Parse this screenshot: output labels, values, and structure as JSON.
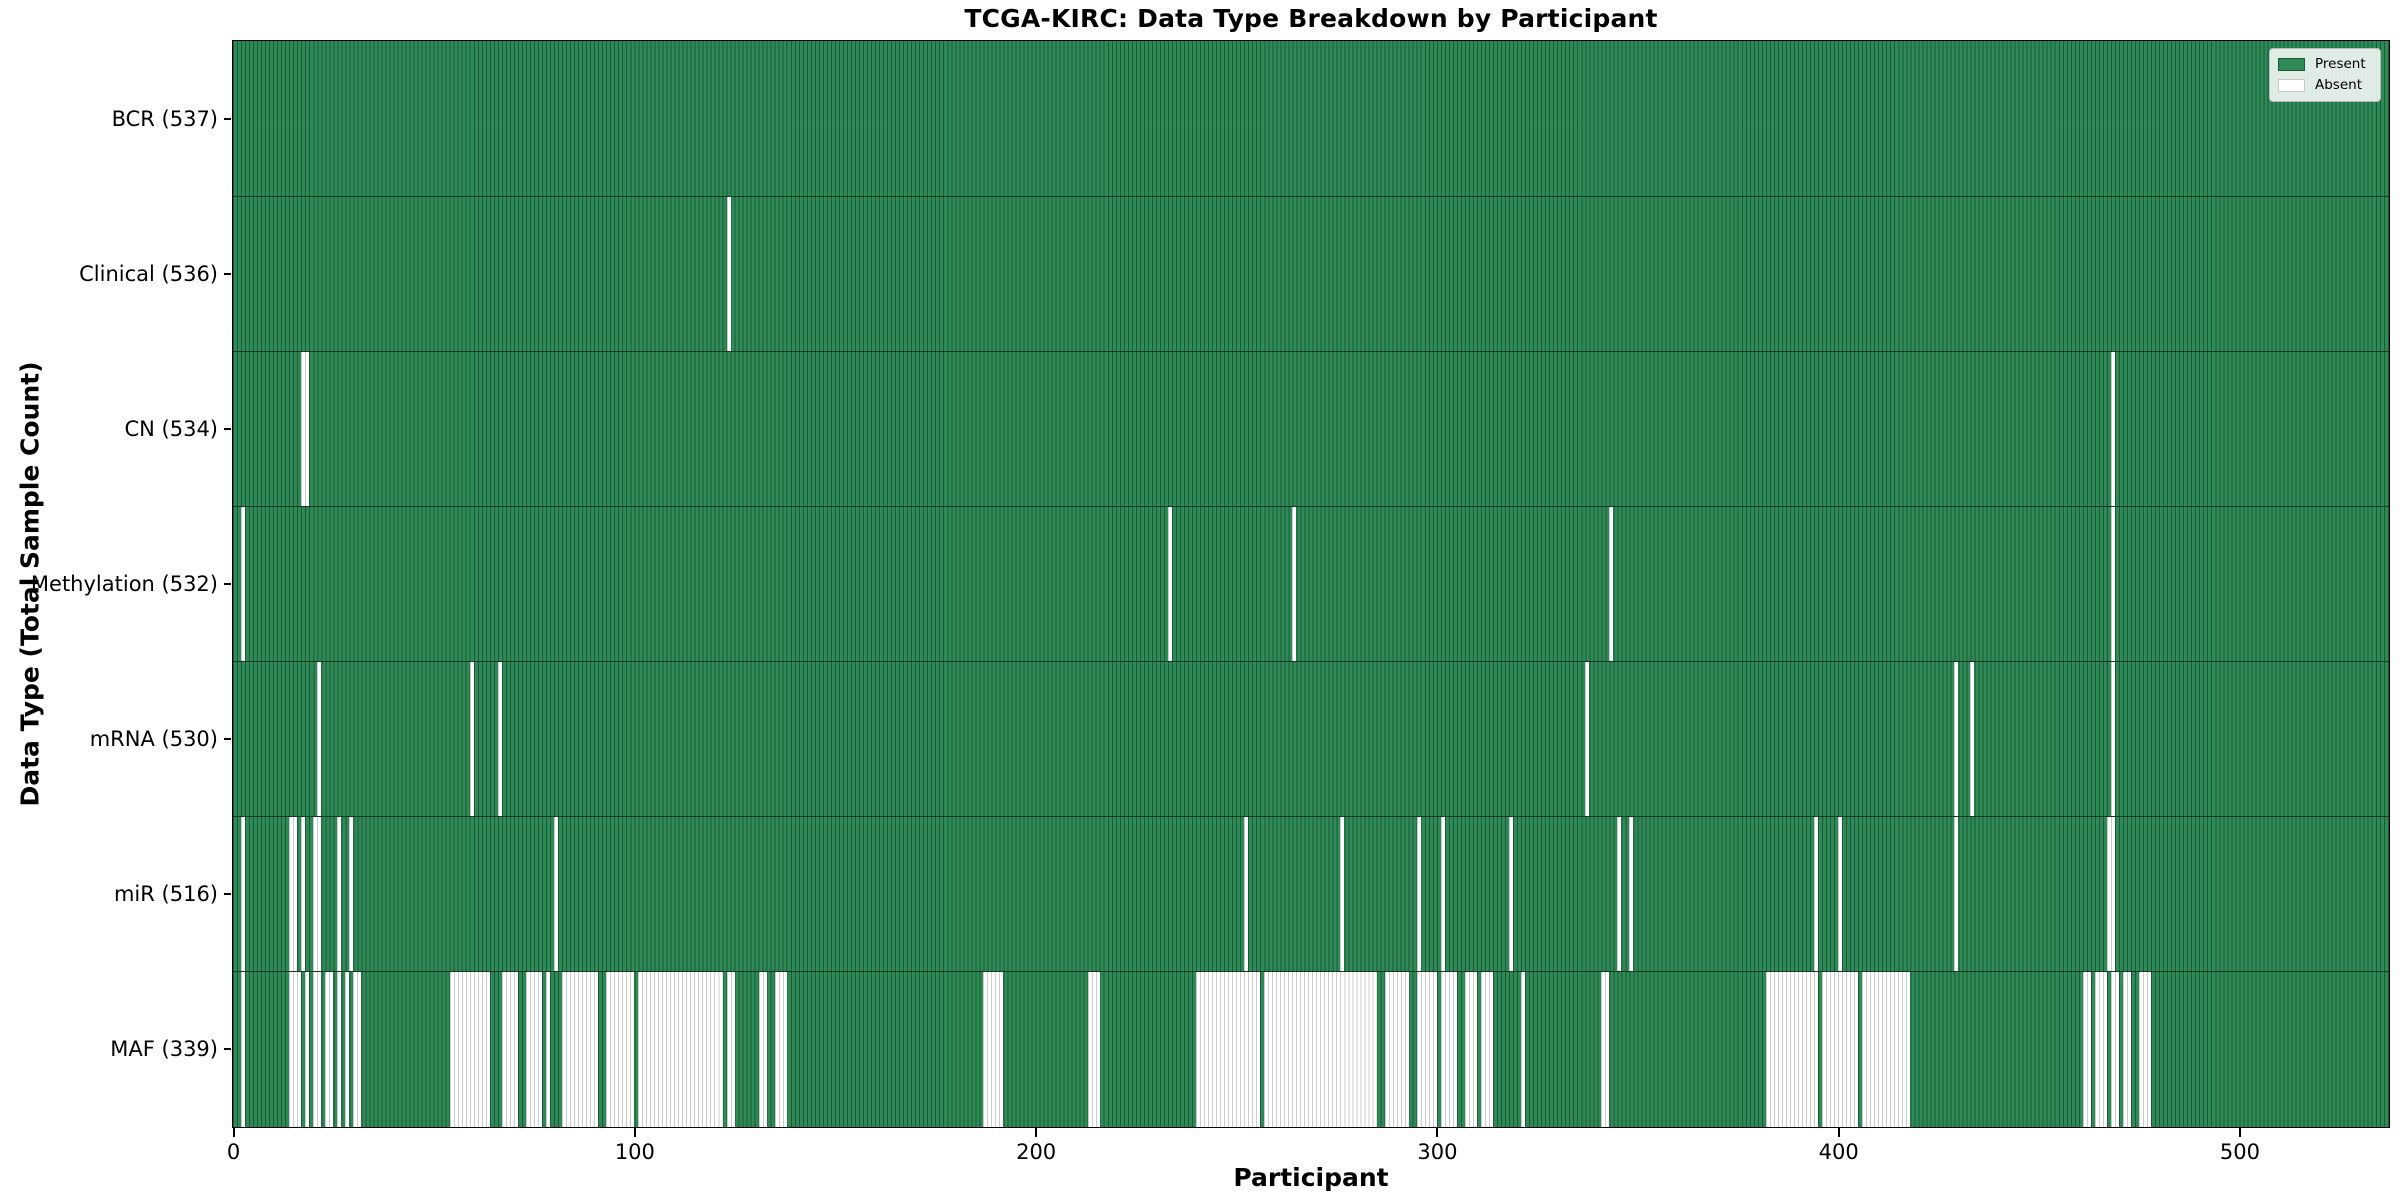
{
  "title": "TCGA-KIRC: Data Type Breakdown by Participant",
  "x_axis": {
    "label": "Participant",
    "ticks": [
      0,
      100,
      200,
      300,
      400,
      500
    ]
  },
  "y_axis": {
    "label": "Data Type (Total Sample Count)"
  },
  "legend": {
    "position": "upper right",
    "items": [
      {
        "label": "Present",
        "fill": "#2e8b57",
        "edge": "#1c5736"
      },
      {
        "label": "Absent",
        "fill": "#ffffff",
        "edge": "#c9c9c9"
      }
    ]
  },
  "colors": {
    "present_fill": "#2e8b57",
    "present_edge": "rgba(8,40,22,0.5)",
    "absent_fill": "#ffffff",
    "absent_edge": "#cccccc",
    "plot_border": "#000000",
    "row_divider": "rgba(0,0,0,0.55)"
  },
  "chart_data": {
    "type": "heatmap",
    "title": "TCGA-KIRC: Data Type Breakdown by Participant",
    "xlabel": "Participant",
    "ylabel": "Data Type (Total Sample Count)",
    "x_range": [
      0,
      537
    ],
    "n_participants": 537,
    "x_ticks": [
      0,
      100,
      200,
      300,
      400,
      500
    ],
    "cell_values": {
      "present": 1,
      "absent": 0
    },
    "legend_entries": [
      "Present",
      "Absent"
    ],
    "rows": [
      {
        "label": "BCR (537)",
        "data_type": "BCR",
        "present_count": 537,
        "absent_count": 0,
        "absent_ranges": []
      },
      {
        "label": "Clinical (536)",
        "data_type": "Clinical",
        "present_count": 536,
        "absent_count": 1,
        "absent_ranges": [
          [
            123,
            123
          ]
        ]
      },
      {
        "label": "CN (534)",
        "data_type": "CN",
        "present_count": 534,
        "absent_count": 3,
        "absent_ranges": [
          [
            17,
            18
          ],
          [
            468,
            468
          ]
        ]
      },
      {
        "label": "Methylation (532)",
        "data_type": "Methylation",
        "present_count": 532,
        "absent_count": 5,
        "absent_ranges": [
          [
            2,
            2
          ],
          [
            233,
            233
          ],
          [
            264,
            264
          ],
          [
            343,
            343
          ],
          [
            468,
            468
          ]
        ]
      },
      {
        "label": "mRNA (530)",
        "data_type": "mRNA",
        "present_count": 530,
        "absent_count": 7,
        "absent_ranges": [
          [
            21,
            21
          ],
          [
            59,
            59
          ],
          [
            66,
            66
          ],
          [
            337,
            337
          ],
          [
            429,
            429
          ],
          [
            433,
            433
          ],
          [
            468,
            468
          ]
        ]
      },
      {
        "label": "miR (516)",
        "data_type": "miR",
        "present_count": 516,
        "absent_count": 21,
        "absent_ranges": [
          [
            2,
            2
          ],
          [
            14,
            15
          ],
          [
            17,
            17
          ],
          [
            20,
            21
          ],
          [
            26,
            26
          ],
          [
            29,
            29
          ],
          [
            80,
            80
          ],
          [
            252,
            252
          ],
          [
            276,
            276
          ],
          [
            295,
            295
          ],
          [
            301,
            301
          ],
          [
            318,
            318
          ],
          [
            345,
            345
          ],
          [
            348,
            348
          ],
          [
            394,
            394
          ],
          [
            400,
            400
          ],
          [
            429,
            429
          ],
          [
            467,
            468
          ]
        ]
      },
      {
        "label": "MAF (339)",
        "data_type": "MAF",
        "present_count": 339,
        "absent_count": 198,
        "absent_ranges": [
          [
            2,
            2
          ],
          [
            14,
            16
          ],
          [
            18,
            18
          ],
          [
            20,
            21
          ],
          [
            23,
            24
          ],
          [
            26,
            26
          ],
          [
            28,
            28
          ],
          [
            30,
            31
          ],
          [
            54,
            63
          ],
          [
            67,
            70
          ],
          [
            73,
            76
          ],
          [
            78,
            78
          ],
          [
            82,
            90
          ],
          [
            93,
            99
          ],
          [
            101,
            121
          ],
          [
            123,
            124
          ],
          [
            131,
            132
          ],
          [
            135,
            137
          ],
          [
            187,
            191
          ],
          [
            213,
            215
          ],
          [
            240,
            255
          ],
          [
            257,
            284
          ],
          [
            287,
            292
          ],
          [
            295,
            299
          ],
          [
            301,
            304
          ],
          [
            307,
            309
          ],
          [
            311,
            313
          ],
          [
            321,
            321
          ],
          [
            341,
            342
          ],
          [
            382,
            394
          ],
          [
            396,
            404
          ],
          [
            406,
            417
          ],
          [
            461,
            462
          ],
          [
            464,
            466
          ],
          [
            468,
            469
          ],
          [
            471,
            472
          ],
          [
            475,
            477
          ]
        ]
      }
    ]
  }
}
